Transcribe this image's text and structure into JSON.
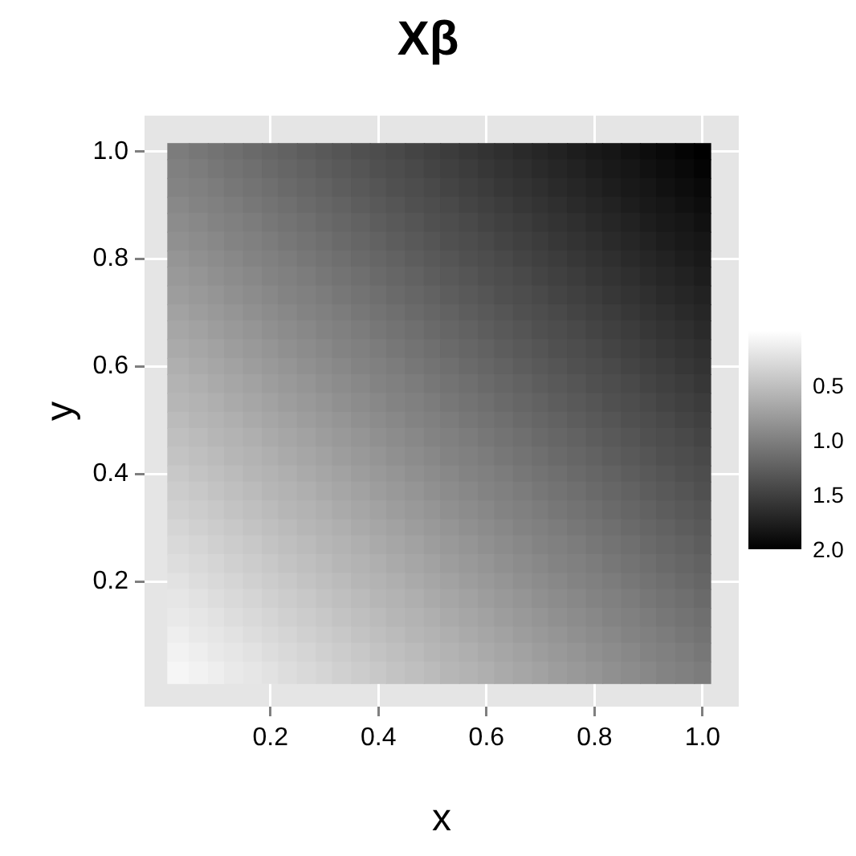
{
  "chart_data": {
    "type": "heatmap",
    "title": "Xβ",
    "xlabel": "x",
    "ylabel": "y",
    "x": [
      0.03,
      0.07,
      0.1,
      0.13,
      0.17,
      0.2,
      0.23,
      0.27,
      0.3,
      0.33,
      0.37,
      0.4,
      0.43,
      0.47,
      0.5,
      0.53,
      0.57,
      0.6,
      0.63,
      0.67,
      0.7,
      0.73,
      0.77,
      0.8,
      0.83,
      0.87,
      0.9,
      0.93,
      0.97,
      1
    ],
    "y": [
      1,
      0.97,
      0.93,
      0.9,
      0.87,
      0.83,
      0.8,
      0.77,
      0.73,
      0.7,
      0.67,
      0.63,
      0.6,
      0.57,
      0.53,
      0.5,
      0.47,
      0.43,
      0.4,
      0.37,
      0.33,
      0.3,
      0.27,
      0.23,
      0.2,
      0.17,
      0.13,
      0.1,
      0.07,
      0.03
    ],
    "cells": [
      [
        1.03,
        1.07,
        1.1,
        1.13,
        1.17,
        1.2,
        1.23,
        1.27,
        1.3,
        1.33,
        1.37,
        1.4,
        1.43,
        1.47,
        1.5,
        1.53,
        1.57,
        1.6,
        1.63,
        1.67,
        1.7,
        1.73,
        1.77,
        1.8,
        1.83,
        1.87,
        1.9,
        1.93,
        1.97,
        2
      ],
      [
        1,
        1.03,
        1.07,
        1.1,
        1.13,
        1.17,
        1.2,
        1.23,
        1.27,
        1.3,
        1.33,
        1.37,
        1.4,
        1.43,
        1.47,
        1.5,
        1.53,
        1.57,
        1.6,
        1.63,
        1.67,
        1.7,
        1.73,
        1.77,
        1.8,
        1.83,
        1.87,
        1.9,
        1.93,
        1.97
      ],
      [
        0.97,
        1,
        1.03,
        1.07,
        1.1,
        1.13,
        1.17,
        1.2,
        1.23,
        1.27,
        1.3,
        1.33,
        1.37,
        1.4,
        1.43,
        1.47,
        1.5,
        1.53,
        1.57,
        1.6,
        1.63,
        1.67,
        1.7,
        1.73,
        1.77,
        1.8,
        1.83,
        1.87,
        1.9,
        1.93
      ],
      [
        0.93,
        0.97,
        1,
        1.03,
        1.07,
        1.1,
        1.13,
        1.17,
        1.2,
        1.23,
        1.27,
        1.3,
        1.33,
        1.37,
        1.4,
        1.43,
        1.47,
        1.5,
        1.53,
        1.57,
        1.6,
        1.63,
        1.67,
        1.7,
        1.73,
        1.77,
        1.8,
        1.83,
        1.87,
        1.9
      ],
      [
        0.9,
        0.93,
        0.97,
        1,
        1.03,
        1.07,
        1.1,
        1.13,
        1.17,
        1.2,
        1.23,
        1.27,
        1.3,
        1.33,
        1.37,
        1.4,
        1.43,
        1.47,
        1.5,
        1.53,
        1.57,
        1.6,
        1.63,
        1.67,
        1.7,
        1.73,
        1.77,
        1.8,
        1.83,
        1.87
      ],
      [
        0.87,
        0.9,
        0.93,
        0.97,
        1,
        1.03,
        1.07,
        1.1,
        1.13,
        1.17,
        1.2,
        1.23,
        1.27,
        1.3,
        1.33,
        1.37,
        1.4,
        1.43,
        1.47,
        1.5,
        1.53,
        1.57,
        1.6,
        1.63,
        1.67,
        1.7,
        1.73,
        1.77,
        1.8,
        1.83
      ],
      [
        0.83,
        0.87,
        0.9,
        0.93,
        0.97,
        1,
        1.03,
        1.07,
        1.1,
        1.13,
        1.17,
        1.2,
        1.23,
        1.27,
        1.3,
        1.33,
        1.37,
        1.4,
        1.43,
        1.47,
        1.5,
        1.53,
        1.57,
        1.6,
        1.63,
        1.67,
        1.7,
        1.73,
        1.77,
        1.8
      ],
      [
        0.8,
        0.83,
        0.87,
        0.9,
        0.93,
        0.97,
        1,
        1.03,
        1.07,
        1.1,
        1.13,
        1.17,
        1.2,
        1.23,
        1.27,
        1.3,
        1.33,
        1.37,
        1.4,
        1.43,
        1.47,
        1.5,
        1.53,
        1.57,
        1.6,
        1.63,
        1.67,
        1.7,
        1.73,
        1.77
      ],
      [
        0.77,
        0.8,
        0.83,
        0.87,
        0.9,
        0.93,
        0.97,
        1,
        1.03,
        1.07,
        1.1,
        1.13,
        1.17,
        1.2,
        1.23,
        1.27,
        1.3,
        1.33,
        1.37,
        1.4,
        1.43,
        1.47,
        1.5,
        1.53,
        1.57,
        1.6,
        1.63,
        1.67,
        1.7,
        1.73
      ],
      [
        0.73,
        0.77,
        0.8,
        0.83,
        0.87,
        0.9,
        0.93,
        0.97,
        1,
        1.03,
        1.07,
        1.1,
        1.13,
        1.17,
        1.2,
        1.23,
        1.27,
        1.3,
        1.33,
        1.37,
        1.4,
        1.43,
        1.47,
        1.5,
        1.53,
        1.57,
        1.6,
        1.63,
        1.67,
        1.7
      ],
      [
        0.7,
        0.73,
        0.77,
        0.8,
        0.83,
        0.87,
        0.9,
        0.93,
        0.97,
        1,
        1.03,
        1.07,
        1.1,
        1.13,
        1.17,
        1.2,
        1.23,
        1.27,
        1.3,
        1.33,
        1.37,
        1.4,
        1.43,
        1.47,
        1.5,
        1.53,
        1.57,
        1.6,
        1.63,
        1.67
      ],
      [
        0.67,
        0.7,
        0.73,
        0.77,
        0.8,
        0.83,
        0.87,
        0.9,
        0.93,
        0.97,
        1,
        1.03,
        1.07,
        1.1,
        1.13,
        1.17,
        1.2,
        1.23,
        1.27,
        1.3,
        1.33,
        1.37,
        1.4,
        1.43,
        1.47,
        1.5,
        1.53,
        1.57,
        1.6,
        1.63
      ],
      [
        0.63,
        0.67,
        0.7,
        0.73,
        0.77,
        0.8,
        0.83,
        0.87,
        0.9,
        0.93,
        0.97,
        1,
        1.03,
        1.07,
        1.1,
        1.13,
        1.17,
        1.2,
        1.23,
        1.27,
        1.3,
        1.33,
        1.37,
        1.4,
        1.43,
        1.47,
        1.5,
        1.53,
        1.57,
        1.6
      ],
      [
        0.6,
        0.63,
        0.67,
        0.7,
        0.73,
        0.77,
        0.8,
        0.83,
        0.87,
        0.9,
        0.93,
        0.97,
        1,
        1.03,
        1.07,
        1.1,
        1.13,
        1.17,
        1.2,
        1.23,
        1.27,
        1.3,
        1.33,
        1.37,
        1.4,
        1.43,
        1.47,
        1.5,
        1.53,
        1.57
      ],
      [
        0.57,
        0.6,
        0.63,
        0.67,
        0.7,
        0.73,
        0.77,
        0.8,
        0.83,
        0.87,
        0.9,
        0.93,
        0.97,
        1,
        1.03,
        1.07,
        1.1,
        1.13,
        1.17,
        1.2,
        1.23,
        1.27,
        1.3,
        1.33,
        1.37,
        1.4,
        1.43,
        1.47,
        1.5,
        1.53
      ],
      [
        0.53,
        0.57,
        0.6,
        0.63,
        0.67,
        0.7,
        0.73,
        0.77,
        0.8,
        0.83,
        0.87,
        0.9,
        0.93,
        0.97,
        1,
        1.03,
        1.07,
        1.1,
        1.13,
        1.17,
        1.2,
        1.23,
        1.27,
        1.3,
        1.33,
        1.37,
        1.4,
        1.43,
        1.47,
        1.5
      ],
      [
        0.5,
        0.53,
        0.57,
        0.6,
        0.63,
        0.67,
        0.7,
        0.73,
        0.77,
        0.8,
        0.83,
        0.87,
        0.9,
        0.93,
        0.97,
        1,
        1.03,
        1.07,
        1.1,
        1.13,
        1.17,
        1.2,
        1.23,
        1.27,
        1.3,
        1.33,
        1.37,
        1.4,
        1.43,
        1.47
      ],
      [
        0.47,
        0.5,
        0.53,
        0.57,
        0.6,
        0.63,
        0.67,
        0.7,
        0.73,
        0.77,
        0.8,
        0.83,
        0.87,
        0.9,
        0.93,
        0.97,
        1,
        1.03,
        1.07,
        1.1,
        1.13,
        1.17,
        1.2,
        1.23,
        1.27,
        1.3,
        1.33,
        1.37,
        1.4,
        1.43
      ],
      [
        0.43,
        0.47,
        0.5,
        0.53,
        0.57,
        0.6,
        0.63,
        0.67,
        0.7,
        0.73,
        0.77,
        0.8,
        0.83,
        0.87,
        0.9,
        0.93,
        0.97,
        1,
        1.03,
        1.07,
        1.1,
        1.13,
        1.17,
        1.2,
        1.23,
        1.27,
        1.3,
        1.33,
        1.37,
        1.4
      ],
      [
        0.4,
        0.43,
        0.47,
        0.5,
        0.53,
        0.57,
        0.6,
        0.63,
        0.67,
        0.7,
        0.73,
        0.77,
        0.8,
        0.83,
        0.87,
        0.9,
        0.93,
        0.97,
        1,
        1.03,
        1.07,
        1.1,
        1.13,
        1.17,
        1.2,
        1.23,
        1.27,
        1.3,
        1.33,
        1.37
      ],
      [
        0.37,
        0.4,
        0.43,
        0.47,
        0.5,
        0.53,
        0.57,
        0.6,
        0.63,
        0.67,
        0.7,
        0.73,
        0.77,
        0.8,
        0.83,
        0.87,
        0.9,
        0.93,
        0.97,
        1,
        1.03,
        1.07,
        1.1,
        1.13,
        1.17,
        1.2,
        1.23,
        1.27,
        1.3,
        1.33
      ],
      [
        0.33,
        0.37,
        0.4,
        0.43,
        0.47,
        0.5,
        0.53,
        0.57,
        0.6,
        0.63,
        0.67,
        0.7,
        0.73,
        0.77,
        0.8,
        0.83,
        0.87,
        0.9,
        0.93,
        0.97,
        1,
        1.03,
        1.07,
        1.1,
        1.13,
        1.17,
        1.2,
        1.23,
        1.27,
        1.3
      ],
      [
        0.3,
        0.33,
        0.37,
        0.4,
        0.43,
        0.47,
        0.5,
        0.53,
        0.57,
        0.6,
        0.63,
        0.67,
        0.7,
        0.73,
        0.77,
        0.8,
        0.83,
        0.87,
        0.9,
        0.93,
        0.97,
        1,
        1.03,
        1.07,
        1.1,
        1.13,
        1.17,
        1.2,
        1.23,
        1.27
      ],
      [
        0.27,
        0.3,
        0.33,
        0.37,
        0.4,
        0.43,
        0.47,
        0.5,
        0.53,
        0.57,
        0.6,
        0.63,
        0.67,
        0.7,
        0.73,
        0.77,
        0.8,
        0.83,
        0.87,
        0.9,
        0.93,
        0.97,
        1,
        1.03,
        1.07,
        1.1,
        1.13,
        1.17,
        1.2,
        1.23
      ],
      [
        0.23,
        0.27,
        0.3,
        0.33,
        0.37,
        0.4,
        0.43,
        0.47,
        0.5,
        0.53,
        0.57,
        0.6,
        0.63,
        0.67,
        0.7,
        0.73,
        0.77,
        0.8,
        0.83,
        0.87,
        0.9,
        0.93,
        0.97,
        1,
        1.03,
        1.07,
        1.1,
        1.13,
        1.17,
        1.2
      ],
      [
        0.2,
        0.23,
        0.27,
        0.3,
        0.33,
        0.37,
        0.4,
        0.43,
        0.47,
        0.5,
        0.53,
        0.57,
        0.6,
        0.63,
        0.67,
        0.7,
        0.73,
        0.77,
        0.8,
        0.83,
        0.87,
        0.9,
        0.93,
        0.97,
        1,
        1.03,
        1.07,
        1.1,
        1.13,
        1.17
      ],
      [
        0.17,
        0.2,
        0.23,
        0.27,
        0.3,
        0.33,
        0.37,
        0.4,
        0.43,
        0.47,
        0.5,
        0.53,
        0.57,
        0.6,
        0.63,
        0.67,
        0.7,
        0.73,
        0.77,
        0.8,
        0.83,
        0.87,
        0.9,
        0.93,
        0.97,
        1,
        1.03,
        1.07,
        1.1,
        1.13
      ],
      [
        0.13,
        0.17,
        0.2,
        0.23,
        0.27,
        0.3,
        0.33,
        0.37,
        0.4,
        0.43,
        0.47,
        0.5,
        0.53,
        0.57,
        0.6,
        0.63,
        0.67,
        0.7,
        0.73,
        0.77,
        0.8,
        0.83,
        0.87,
        0.9,
        0.93,
        0.97,
        1,
        1.03,
        1.07,
        1.1
      ],
      [
        0.1,
        0.13,
        0.17,
        0.2,
        0.23,
        0.27,
        0.3,
        0.33,
        0.37,
        0.4,
        0.43,
        0.47,
        0.5,
        0.53,
        0.57,
        0.6,
        0.63,
        0.67,
        0.7,
        0.73,
        0.77,
        0.8,
        0.83,
        0.87,
        0.9,
        0.93,
        0.97,
        1,
        1.03,
        1.07
      ],
      [
        0.07,
        0.1,
        0.13,
        0.17,
        0.2,
        0.23,
        0.27,
        0.3,
        0.33,
        0.37,
        0.4,
        0.43,
        0.47,
        0.5,
        0.53,
        0.57,
        0.6,
        0.63,
        0.67,
        0.7,
        0.73,
        0.77,
        0.8,
        0.83,
        0.87,
        0.9,
        0.93,
        0.97,
        1,
        1.03
      ]
    ],
    "clim": [
      0,
      2
    ],
    "cticks": [
      0.5,
      {
        "value": 1,
        "label": "1.0"
      },
      1.5,
      {
        "value": 2,
        "label": "2.0"
      }
    ],
    "xlim": [
      -0.033,
      1.067
    ],
    "ylim": [
      -0.033,
      1.067
    ],
    "xticks": [
      0.2,
      0.4,
      0.6,
      0.8,
      {
        "value": 1,
        "label": "1.0"
      }
    ],
    "yticks": [
      0.2,
      0.4,
      0.6,
      0.8,
      {
        "value": 1,
        "label": "1.0"
      }
    ],
    "grid": true
  }
}
